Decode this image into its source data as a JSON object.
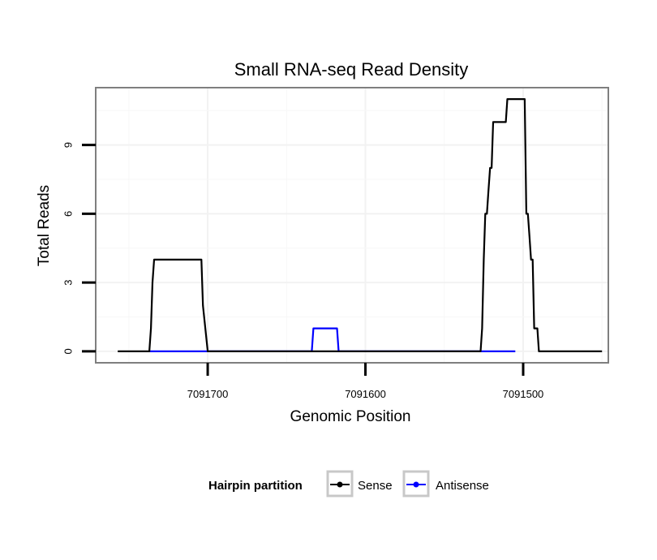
{
  "chart_data": {
    "type": "line",
    "title": "Small RNA-seq Read Density",
    "xlabel": "Genomic Position",
    "ylabel": "Total Reads",
    "x_reversed": true,
    "xlim": [
      7091771,
      7091446
    ],
    "ylim": [
      -0.5,
      11.5
    ],
    "x_ticks": [
      7091700,
      7091600,
      7091500
    ],
    "x_tick_labels": [
      "7091700",
      "7091600",
      "7091500"
    ],
    "y_ticks": [
      0,
      3,
      6,
      9
    ],
    "y_tick_labels": [
      "0",
      "3",
      "6",
      "9"
    ],
    "grid": true,
    "legend": {
      "title": "Hairpin partition",
      "position": "bottom",
      "entries": [
        {
          "name": "Sense",
          "color": "#000000"
        },
        {
          "name": "Antisense",
          "color": "#0000ff"
        }
      ]
    },
    "series": [
      {
        "name": "Sense",
        "color": "#000000",
        "x": [
          7091757,
          7091737,
          7091736,
          7091735,
          7091734,
          7091733,
          7091713,
          7091712,
          7091711,
          7091710,
          7091709,
          7091706,
          7091705,
          7091704,
          7091703,
          7091700,
          7091660,
          7091620,
          7091580,
          7091540,
          7091527,
          7091526,
          7091525,
          7091524,
          7091523,
          7091522,
          7091521,
          7091520,
          7091519,
          7091518,
          7091517,
          7091513,
          7091512,
          7091511,
          7091510,
          7091509,
          7091508,
          7091507,
          7091506,
          7091505,
          7091504,
          7091503,
          7091502,
          7091501,
          7091500,
          7091499,
          7091498,
          7091497,
          7091496,
          7091495,
          7091494,
          7091493,
          7091492,
          7091491,
          7091490,
          7091489,
          7091488,
          7091487,
          7091486,
          7091485,
          7091484,
          7091483,
          7091482,
          7091481,
          7091480,
          7091479,
          7091478,
          7091477,
          7091476,
          7091475,
          7091474,
          7091473,
          7091472,
          7091471,
          7091470,
          7091469,
          7091468,
          7091467,
          7091466,
          7091465,
          7091464,
          7091463,
          7091462,
          7091461,
          7091460,
          7091459,
          7091458,
          7091457,
          7091456,
          7091455,
          7091454,
          7091453,
          7091452,
          7091451,
          7091450
        ],
        "y": [
          0,
          0,
          1,
          3,
          4,
          4,
          4,
          4,
          4,
          4,
          4,
          4,
          4,
          4,
          2,
          0,
          0,
          0,
          0,
          0,
          0,
          1,
          4,
          6,
          6,
          7,
          8,
          8,
          10,
          10,
          10,
          10,
          10,
          10,
          11,
          11,
          11,
          11,
          11,
          11,
          11,
          11,
          11,
          11,
          11,
          11,
          6,
          6,
          5,
          4,
          4,
          1,
          1,
          1,
          0,
          0,
          0,
          0,
          0,
          0,
          0,
          0,
          0,
          0,
          0,
          0,
          0,
          0,
          0,
          0,
          0,
          0,
          0,
          0,
          0,
          0,
          0,
          0,
          0,
          0,
          0,
          0,
          0,
          0,
          0,
          0,
          0,
          0,
          0,
          0,
          0,
          0,
          0,
          0,
          0
        ]
      },
      {
        "name": "Antisense",
        "color": "#0000ff",
        "x": [
          7091737,
          7091700,
          7091650,
          7091634,
          7091633,
          7091618,
          7091617,
          7091590,
          7091540,
          7091526,
          7091505
        ],
        "y": [
          0,
          0,
          0,
          0,
          1,
          1,
          0,
          0,
          0,
          0,
          0
        ]
      }
    ]
  }
}
